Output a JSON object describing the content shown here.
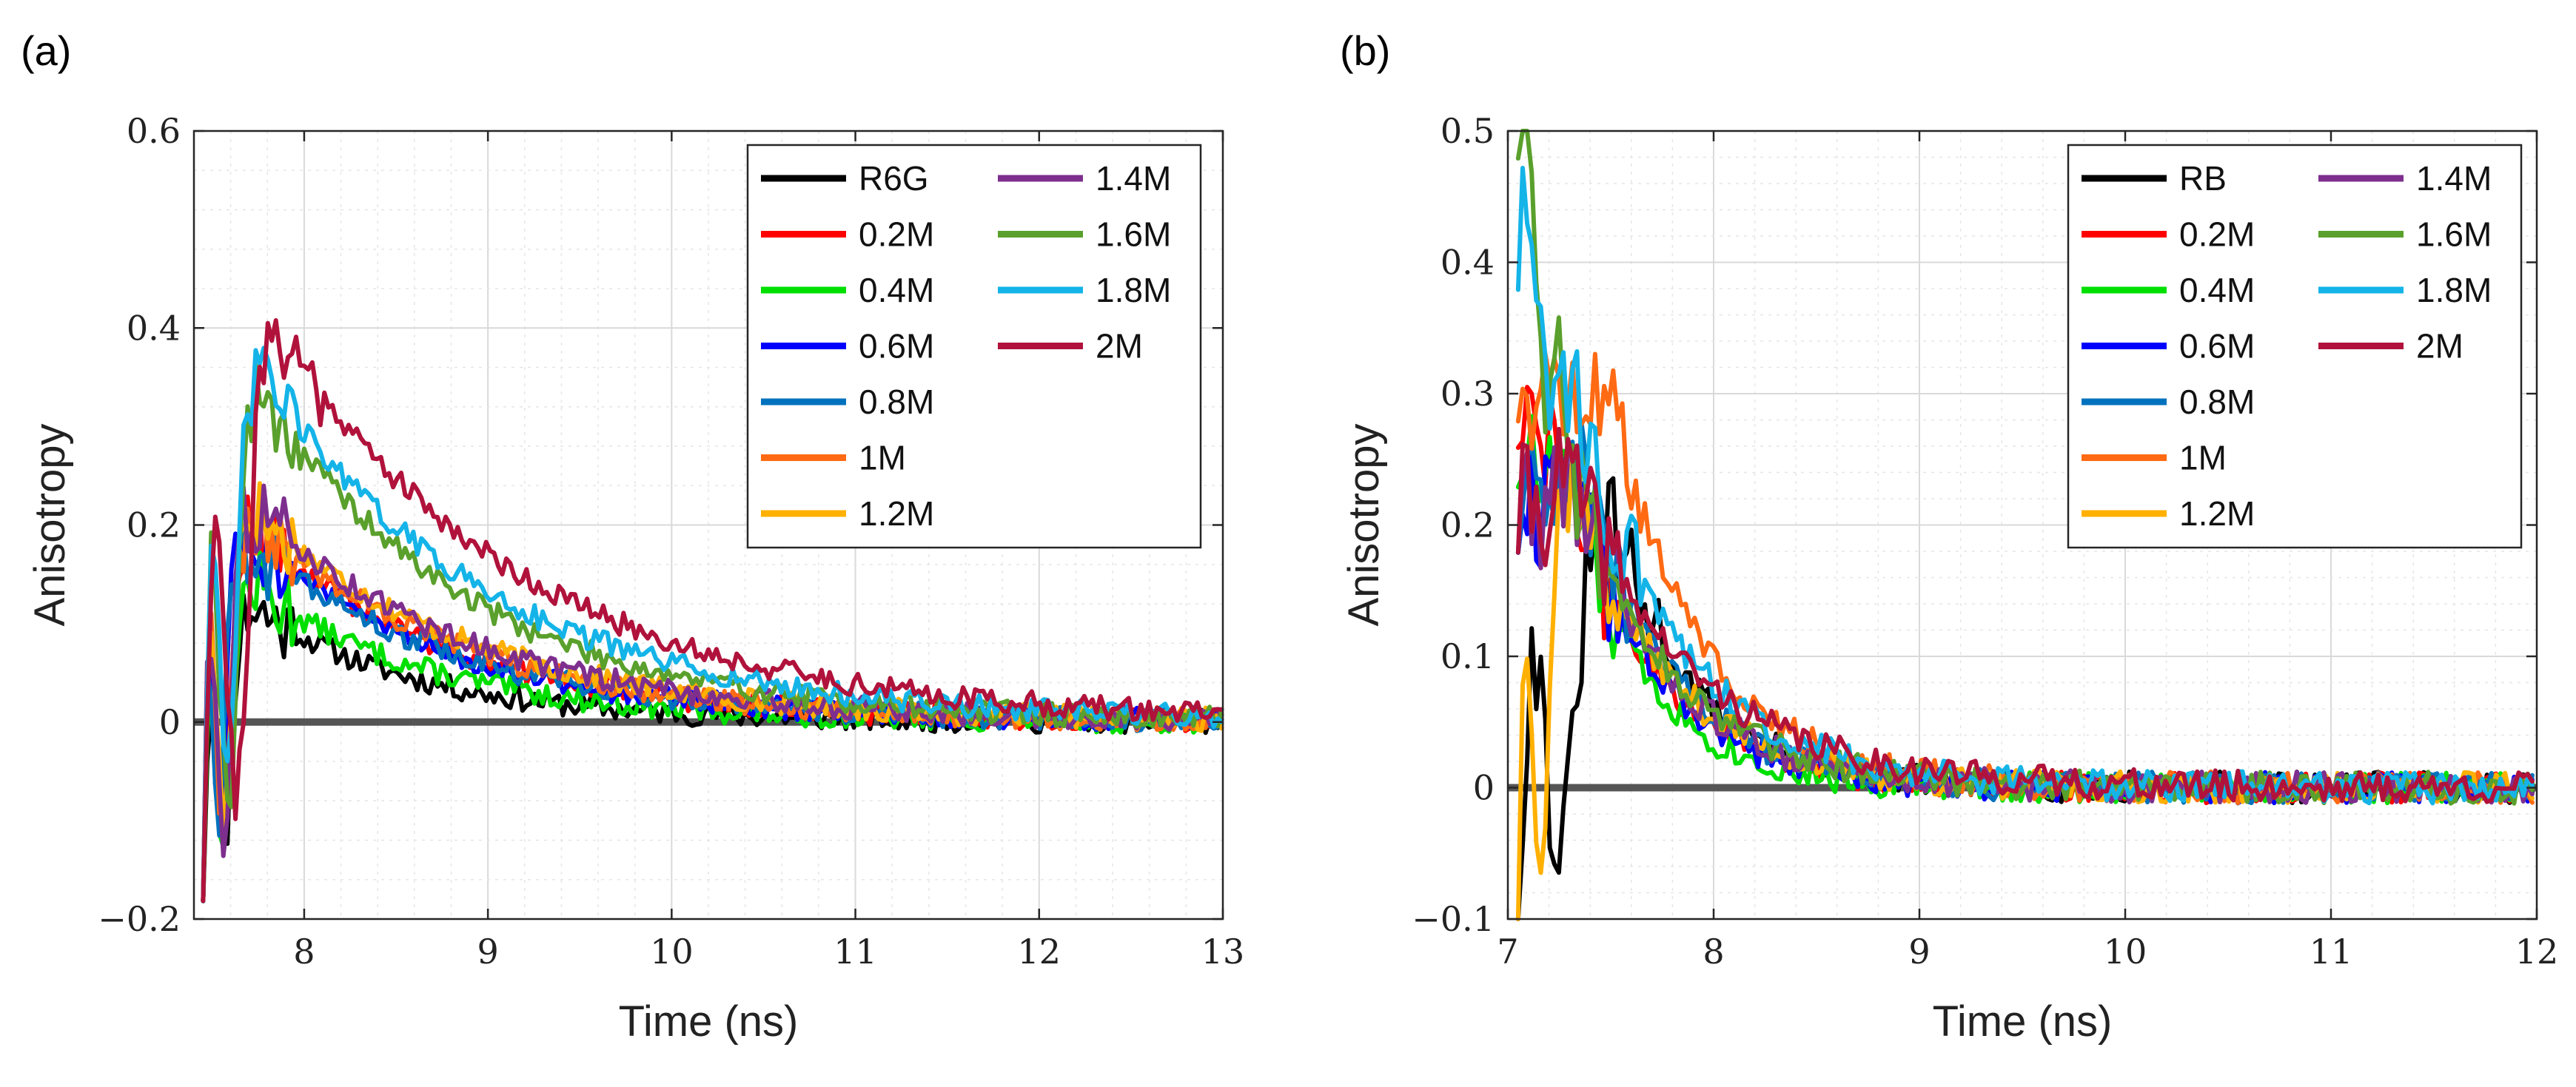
{
  "chart_data": [
    {
      "type": "line",
      "panel_label": "(a)",
      "xlabel": "Time (ns)",
      "ylabel": "Anisotropy",
      "xlim": [
        7.4,
        13
      ],
      "ylim": [
        -0.2,
        0.6
      ],
      "xticks": [
        {
          "value": 8,
          "label": "8"
        },
        {
          "value": 9,
          "label": "9"
        },
        {
          "value": 10,
          "label": "10"
        },
        {
          "value": 11,
          "label": "11"
        },
        {
          "value": 12,
          "label": "12"
        },
        {
          "value": 13,
          "label": "13"
        }
      ],
      "yticks": [
        {
          "value": -0.2,
          "label": "−0.2"
        },
        {
          "value": 0,
          "label": "0"
        },
        {
          "value": 0.2,
          "label": "0.2"
        },
        {
          "value": 0.4,
          "label": "0.4"
        },
        {
          "value": 0.6,
          "label": "0.6"
        }
      ],
      "grid": true,
      "legend_position": "top-right",
      "legend_columns": 2,
      "series": [
        {
          "name": "R6G",
          "color": "#000000",
          "peak_time": 7.7,
          "peak_value": 0.12,
          "initial_value": -0.16,
          "decay_ns": 0.9,
          "noise": 0.012,
          "seed": 11
        },
        {
          "name": "0.2M",
          "color": "#ff0000",
          "peak_time": 7.7,
          "peak_value": 0.2,
          "initial_value": -0.16,
          "decay_ns": 1.1,
          "noise": 0.012,
          "seed": 12
        },
        {
          "name": "0.4M",
          "color": "#00e000",
          "peak_time": 7.7,
          "peak_value": 0.14,
          "initial_value": -0.16,
          "decay_ns": 1.0,
          "noise": 0.012,
          "seed": 13
        },
        {
          "name": "0.6M",
          "color": "#0000ff",
          "peak_time": 7.65,
          "peak_value": 0.2,
          "initial_value": -0.16,
          "decay_ns": 1.1,
          "noise": 0.012,
          "seed": 14
        },
        {
          "name": "0.8M",
          "color": "#0072bd",
          "peak_time": 7.65,
          "peak_value": 0.19,
          "initial_value": -0.16,
          "decay_ns": 1.15,
          "noise": 0.012,
          "seed": 15
        },
        {
          "name": "1M",
          "color": "#ff6a13",
          "peak_time": 7.7,
          "peak_value": 0.21,
          "initial_value": -0.16,
          "decay_ns": 1.15,
          "noise": 0.012,
          "seed": 16
        },
        {
          "name": "1.2M",
          "color": "#ffb000",
          "peak_time": 7.7,
          "peak_value": 0.22,
          "initial_value": -0.16,
          "decay_ns": 1.2,
          "noise": 0.012,
          "seed": 17
        },
        {
          "name": "1.4M",
          "color": "#7e2f8e",
          "peak_time": 7.7,
          "peak_value": 0.22,
          "initial_value": -0.16,
          "decay_ns": 1.2,
          "noise": 0.012,
          "seed": 18
        },
        {
          "name": "1.6M",
          "color": "#5aa02c",
          "peak_time": 7.75,
          "peak_value": 0.34,
          "initial_value": -0.16,
          "decay_ns": 1.15,
          "noise": 0.012,
          "seed": 19
        },
        {
          "name": "1.8M",
          "color": "#14b4e8",
          "peak_time": 7.75,
          "peak_value": 0.36,
          "initial_value": -0.16,
          "decay_ns": 1.25,
          "noise": 0.012,
          "seed": 20
        },
        {
          "name": "2M",
          "color": "#b0123b",
          "peak_time": 7.85,
          "peak_value": 0.4,
          "initial_value": -0.16,
          "decay_ns": 1.35,
          "noise": 0.012,
          "seed": 21
        }
      ]
    },
    {
      "type": "line",
      "panel_label": "(b)",
      "xlabel": "Time (ns)",
      "ylabel": "Anisotropy",
      "xlim": [
        7,
        12
      ],
      "ylim": [
        -0.1,
        0.5
      ],
      "xticks": [
        {
          "value": 7,
          "label": "7"
        },
        {
          "value": 8,
          "label": "8"
        },
        {
          "value": 9,
          "label": "9"
        },
        {
          "value": 10,
          "label": "10"
        },
        {
          "value": 11,
          "label": "11"
        },
        {
          "value": 12,
          "label": "12"
        }
      ],
      "yticks": [
        {
          "value": -0.1,
          "label": "−0.1"
        },
        {
          "value": 0,
          "label": "0"
        },
        {
          "value": 0.1,
          "label": "0.1"
        },
        {
          "value": 0.2,
          "label": "0.2"
        },
        {
          "value": 0.3,
          "label": "0.3"
        },
        {
          "value": 0.4,
          "label": "0.4"
        },
        {
          "value": 0.5,
          "label": "0.5"
        }
      ],
      "grid": true,
      "legend_position": "top-right",
      "legend_columns": 2,
      "series": [
        {
          "name": "RB",
          "color": "#000000",
          "peak_time": 7.5,
          "peak_value": 0.2,
          "initial_value": -0.1,
          "decay_ns": 0.42,
          "noise": 0.012,
          "seed": 31
        },
        {
          "name": "0.2M",
          "color": "#ff0000",
          "peak_time": 7.25,
          "peak_value": 0.25,
          "initial_value": 0.28,
          "decay_ns": 0.45,
          "noise": 0.012,
          "seed": 32
        },
        {
          "name": "0.4M",
          "color": "#00e000",
          "peak_time": 7.3,
          "peak_value": 0.23,
          "initial_value": 0.25,
          "decay_ns": 0.38,
          "noise": 0.012,
          "seed": 33
        },
        {
          "name": "0.6M",
          "color": "#0000ff",
          "peak_time": 7.3,
          "peak_value": 0.24,
          "initial_value": 0.2,
          "decay_ns": 0.42,
          "noise": 0.012,
          "seed": 34
        },
        {
          "name": "0.8M",
          "color": "#0072bd",
          "peak_time": 7.35,
          "peak_value": 0.24,
          "initial_value": 0.2,
          "decay_ns": 0.44,
          "noise": 0.012,
          "seed": 35
        },
        {
          "name": "1M",
          "color": "#ff6a13",
          "peak_time": 7.5,
          "peak_value": 0.3,
          "initial_value": 0.3,
          "decay_ns": 0.45,
          "noise": 0.012,
          "seed": 36
        },
        {
          "name": "1.2M",
          "color": "#ffb000",
          "peak_time": 7.3,
          "peak_value": 0.24,
          "initial_value": -0.1,
          "decay_ns": 0.47,
          "noise": 0.012,
          "seed": 37
        },
        {
          "name": "1.4M",
          "color": "#7e2f8e",
          "peak_time": 7.3,
          "peak_value": 0.24,
          "initial_value": 0.2,
          "decay_ns": 0.47,
          "noise": 0.012,
          "seed": 38
        },
        {
          "name": "1.6M",
          "color": "#5aa02c",
          "peak_time": 7.3,
          "peak_value": 0.25,
          "initial_value": 0.5,
          "decay_ns": 0.48,
          "noise": 0.012,
          "seed": 39
        },
        {
          "name": "1.8M",
          "color": "#14b4e8",
          "peak_time": 7.4,
          "peak_value": 0.25,
          "initial_value": 0.4,
          "decay_ns": 0.52,
          "noise": 0.012,
          "seed": 40
        },
        {
          "name": "2M",
          "color": "#b0123b",
          "peak_time": 7.3,
          "peak_value": 0.24,
          "initial_value": 0.2,
          "decay_ns": 0.6,
          "noise": 0.012,
          "seed": 41
        }
      ]
    }
  ]
}
